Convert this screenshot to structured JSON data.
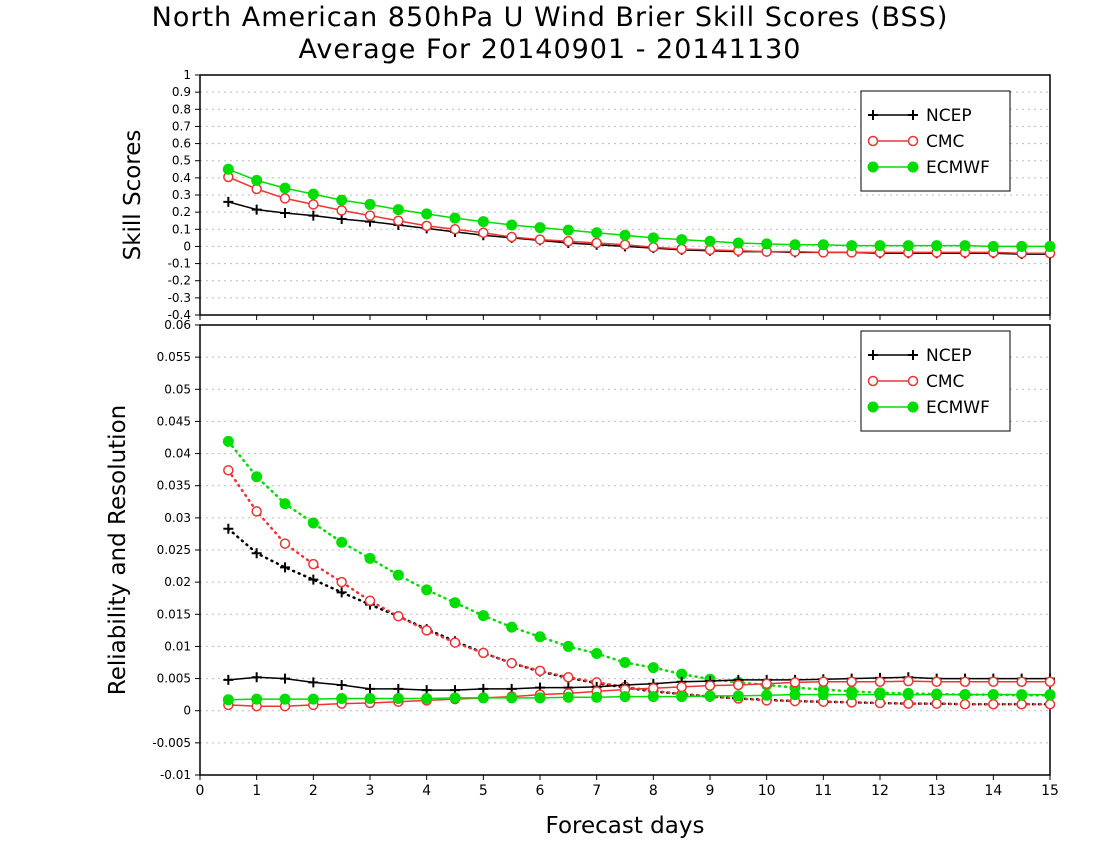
{
  "title": {
    "line1": "North American 850hPa U Wind Brier Skill Scores (BSS)",
    "line2": "Average For 20140901 - 20141130"
  },
  "xlabel": "Forecast days",
  "colors": {
    "NCEP": "#000000",
    "CMC": "#ee3333",
    "ECMWF": "#00dd00"
  },
  "chart_data": [
    {
      "type": "line",
      "panel": "top",
      "ylabel": "Skill Scores",
      "xlim": [
        0,
        15
      ],
      "ylim": [
        -0.4,
        1
      ],
      "yticks": [
        "-0.4",
        "-0.3",
        "-0.2",
        "-0.1",
        "0",
        "0.1",
        "0.2",
        "0.3",
        "0.4",
        "0.5",
        "0.6",
        "0.7",
        "0.8",
        "0.9",
        "1"
      ],
      "xticks": [
        "0",
        "1",
        "2",
        "3",
        "4",
        "5",
        "6",
        "7",
        "8",
        "9",
        "10",
        "11",
        "12",
        "13",
        "14",
        "15"
      ],
      "grid": true,
      "legend_position": "top-right",
      "x": [
        0.5,
        1,
        1.5,
        2,
        2.5,
        3,
        3.5,
        4,
        4.5,
        5,
        5.5,
        6,
        6.5,
        7,
        7.5,
        8,
        8.5,
        9,
        9.5,
        10,
        10.5,
        11,
        11.5,
        12,
        12.5,
        13,
        13.5,
        14,
        14.5,
        15
      ],
      "series": [
        {
          "name": "NCEP",
          "marker": "plus",
          "style": "solid",
          "values": [
            0.26,
            0.215,
            0.195,
            0.18,
            0.16,
            0.145,
            0.125,
            0.105,
            0.085,
            0.065,
            0.05,
            0.035,
            0.02,
            0.01,
            0,
            -0.01,
            -0.02,
            -0.025,
            -0.03,
            -0.03,
            -0.035,
            -0.035,
            -0.035,
            -0.04,
            -0.04,
            -0.04,
            -0.04,
            -0.04,
            -0.045,
            -0.045
          ]
        },
        {
          "name": "CMC",
          "marker": "open-circle",
          "style": "solid",
          "values": [
            0.405,
            0.335,
            0.28,
            0.245,
            0.21,
            0.18,
            0.15,
            0.12,
            0.1,
            0.08,
            0.055,
            0.04,
            0.03,
            0.02,
            0.01,
            -0.005,
            -0.015,
            -0.02,
            -0.025,
            -0.03,
            -0.03,
            -0.035,
            -0.035,
            -0.035,
            -0.035,
            -0.035,
            -0.035,
            -0.035,
            -0.04,
            -0.04
          ]
        },
        {
          "name": "ECMWF",
          "marker": "filled-circle",
          "style": "solid",
          "values": [
            0.45,
            0.385,
            0.34,
            0.305,
            0.27,
            0.245,
            0.215,
            0.19,
            0.165,
            0.145,
            0.125,
            0.11,
            0.095,
            0.08,
            0.065,
            0.05,
            0.04,
            0.03,
            0.02,
            0.015,
            0.01,
            0.01,
            0.005,
            0.005,
            0.005,
            0.005,
            0.005,
            0.0,
            0.0,
            0.0
          ]
        }
      ]
    },
    {
      "type": "line",
      "panel": "bottom",
      "ylabel": "Reliability and Resolution",
      "xlim": [
        0,
        15
      ],
      "ylim": [
        -0.01,
        0.06
      ],
      "yticks": [
        "-0.01",
        "-0.005",
        "0",
        "0.005",
        "0.01",
        "0.015",
        "0.02",
        "0.025",
        "0.03",
        "0.035",
        "0.04",
        "0.045",
        "0.05",
        "0.055",
        "0.06"
      ],
      "xticks": [
        "0",
        "1",
        "2",
        "3",
        "4",
        "5",
        "6",
        "7",
        "8",
        "9",
        "10",
        "11",
        "12",
        "13",
        "14",
        "15"
      ],
      "grid": true,
      "legend_position": "top-right",
      "x": [
        0.5,
        1,
        1.5,
        2,
        2.5,
        3,
        3.5,
        4,
        4.5,
        5,
        5.5,
        6,
        6.5,
        7,
        7.5,
        8,
        8.5,
        9,
        9.5,
        10,
        10.5,
        11,
        11.5,
        12,
        12.5,
        13,
        13.5,
        14,
        14.5,
        15
      ],
      "series": [
        {
          "name": "NCEP",
          "marker": "plus",
          "style": "dotted",
          "quantity": "resolution",
          "values": [
            0.0283,
            0.0245,
            0.0223,
            0.0204,
            0.0184,
            0.0165,
            0.0147,
            0.0127,
            0.0108,
            0.009,
            0.0074,
            0.0061,
            0.0051,
            0.0043,
            0.0036,
            0.003,
            0.0026,
            0.0022,
            0.0019,
            0.0017,
            0.0015,
            0.0014,
            0.0013,
            0.0012,
            0.0011,
            0.0011,
            0.001,
            0.001,
            0.001,
            0.001
          ]
        },
        {
          "name": "CMC",
          "marker": "open-circle",
          "style": "dotted",
          "quantity": "resolution",
          "values": [
            0.0374,
            0.031,
            0.026,
            0.0228,
            0.02,
            0.0171,
            0.0147,
            0.0125,
            0.0106,
            0.009,
            0.0074,
            0.0062,
            0.0052,
            0.0044,
            0.0037,
            0.0031,
            0.0026,
            0.0022,
            0.0019,
            0.0016,
            0.0015,
            0.0014,
            0.0013,
            0.0012,
            0.0011,
            0.0011,
            0.001,
            0.001,
            0.001,
            0.001
          ]
        },
        {
          "name": "ECMWF",
          "marker": "filled-circle",
          "style": "dotted",
          "quantity": "resolution",
          "values": [
            0.0419,
            0.0364,
            0.0322,
            0.0292,
            0.0262,
            0.0237,
            0.0211,
            0.0188,
            0.0168,
            0.0148,
            0.013,
            0.0115,
            0.01,
            0.0089,
            0.0075,
            0.0067,
            0.0057,
            0.0049,
            0.0044,
            0.004,
            0.0036,
            0.0033,
            0.003,
            0.0028,
            0.0027,
            0.0026,
            0.0025,
            0.0025,
            0.0024,
            0.0024
          ]
        },
        {
          "name": "NCEP",
          "marker": "plus",
          "style": "solid",
          "quantity": "reliability",
          "values": [
            0.0048,
            0.0052,
            0.005,
            0.0044,
            0.004,
            0.0034,
            0.0034,
            0.0032,
            0.0032,
            0.0034,
            0.0034,
            0.0036,
            0.0036,
            0.0037,
            0.004,
            0.0042,
            0.0045,
            0.0046,
            0.0048,
            0.0048,
            0.0048,
            0.0049,
            0.005,
            0.0051,
            0.0052,
            0.005,
            0.005,
            0.005,
            0.005,
            0.005
          ]
        },
        {
          "name": "CMC",
          "marker": "open-circle",
          "style": "solid",
          "quantity": "reliability",
          "values": [
            0.0009,
            0.0007,
            0.0007,
            0.0009,
            0.0011,
            0.0012,
            0.0014,
            0.0016,
            0.0018,
            0.002,
            0.0022,
            0.0025,
            0.0027,
            0.003,
            0.0033,
            0.0035,
            0.0037,
            0.0039,
            0.004,
            0.0042,
            0.0044,
            0.0045,
            0.0045,
            0.0045,
            0.0046,
            0.0045,
            0.0045,
            0.0045,
            0.0045,
            0.0045
          ]
        },
        {
          "name": "ECMWF",
          "marker": "filled-circle",
          "style": "solid",
          "quantity": "reliability",
          "values": [
            0.0017,
            0.0018,
            0.0018,
            0.0018,
            0.0019,
            0.0019,
            0.0019,
            0.0019,
            0.002,
            0.002,
            0.002,
            0.002,
            0.0021,
            0.0021,
            0.0022,
            0.0022,
            0.0022,
            0.0023,
            0.0023,
            0.0024,
            0.0025,
            0.0025,
            0.0025,
            0.0025,
            0.0025,
            0.0025,
            0.0025,
            0.0025,
            0.0025,
            0.0025
          ]
        }
      ]
    }
  ]
}
